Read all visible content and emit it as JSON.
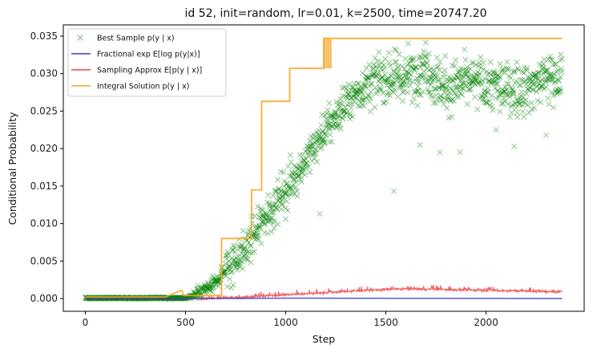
{
  "chart_data": {
    "type": "line",
    "title": "id 52, init=random, lr=0.01, k=2500, time=20747.20",
    "xlabel": "Step",
    "ylabel": "Conditional Probability",
    "xlim": [
      -110,
      2490
    ],
    "ylim": [
      -0.0017,
      0.0365
    ],
    "xticks": [
      0,
      500,
      1000,
      1500,
      2000
    ],
    "yticks": [
      0.0,
      0.005,
      0.01,
      0.015,
      0.02,
      0.025,
      0.03,
      0.035
    ],
    "ytick_labels": [
      "0.000",
      "0.005",
      "0.010",
      "0.015",
      "0.020",
      "0.025",
      "0.030",
      "0.035"
    ],
    "grid": false,
    "legend_position": "top-left",
    "series": [
      {
        "name": "Best Sample p(y | x)",
        "kind": "scatter",
        "marker": "x",
        "color": "#008000",
        "trend": [
          [
            0,
            0.0
          ],
          [
            500,
            0.0
          ],
          [
            560,
            0.0005
          ],
          [
            650,
            0.002
          ],
          [
            700,
            0.004
          ],
          [
            800,
            0.0065
          ],
          [
            900,
            0.011
          ],
          [
            1000,
            0.0145
          ],
          [
            1100,
            0.0185
          ],
          [
            1200,
            0.0225
          ],
          [
            1300,
            0.026
          ],
          [
            1400,
            0.0285
          ],
          [
            1500,
            0.0295
          ],
          [
            1600,
            0.0295
          ],
          [
            1700,
            0.031
          ],
          [
            1750,
            0.029
          ],
          [
            1800,
            0.028
          ],
          [
            1900,
            0.029
          ],
          [
            2000,
            0.0285
          ],
          [
            2100,
            0.028
          ],
          [
            2200,
            0.028
          ],
          [
            2300,
            0.0295
          ],
          [
            2380,
            0.0295
          ]
        ],
        "outliers": [
          [
            1540,
            0.0143
          ],
          [
            1000,
            0.0106
          ],
          [
            1170,
            0.0113
          ],
          [
            1400,
            0.0292
          ],
          [
            1770,
            0.0195
          ],
          [
            1870,
            0.0195
          ],
          [
            2140,
            0.0203
          ],
          [
            2300,
            0.0218
          ],
          [
            1670,
            0.0205
          ],
          [
            2050,
            0.0225
          ]
        ]
      },
      {
        "name": "Fractional exp E[log p(y|x)]",
        "kind": "line",
        "color": "#3a3ad6",
        "points": [
          [
            0,
            0.0
          ],
          [
            600,
            0.0
          ],
          [
            1000,
            5e-05
          ],
          [
            2380,
            0.0
          ]
        ]
      },
      {
        "name": "Sampling Approx E[p(y | x)]",
        "kind": "line",
        "color": "#ee4444",
        "points": [
          [
            0,
            0.0
          ],
          [
            550,
            0.0
          ],
          [
            800,
            0.0002
          ],
          [
            1000,
            0.0005
          ],
          [
            1200,
            0.0008
          ],
          [
            1400,
            0.0011
          ],
          [
            1600,
            0.0013
          ],
          [
            1800,
            0.0012
          ],
          [
            2000,
            0.0011
          ],
          [
            2200,
            0.001
          ],
          [
            2380,
            0.0009
          ]
        ]
      },
      {
        "name": "Integral Solution p(y | x)",
        "kind": "step",
        "color": "#f5a623",
        "points": [
          [
            0,
            0.0002
          ],
          [
            400,
            0.0002
          ],
          [
            480,
            0.0011
          ],
          [
            490,
            0.0004
          ],
          [
            680,
            0.0004
          ],
          [
            680,
            0.008
          ],
          [
            830,
            0.008
          ],
          [
            830,
            0.0145
          ],
          [
            880,
            0.0145
          ],
          [
            880,
            0.0263
          ],
          [
            1020,
            0.0263
          ],
          [
            1020,
            0.0307
          ],
          [
            1190,
            0.0307
          ],
          [
            1190,
            0.0347
          ],
          [
            2380,
            0.0347
          ]
        ]
      }
    ]
  }
}
